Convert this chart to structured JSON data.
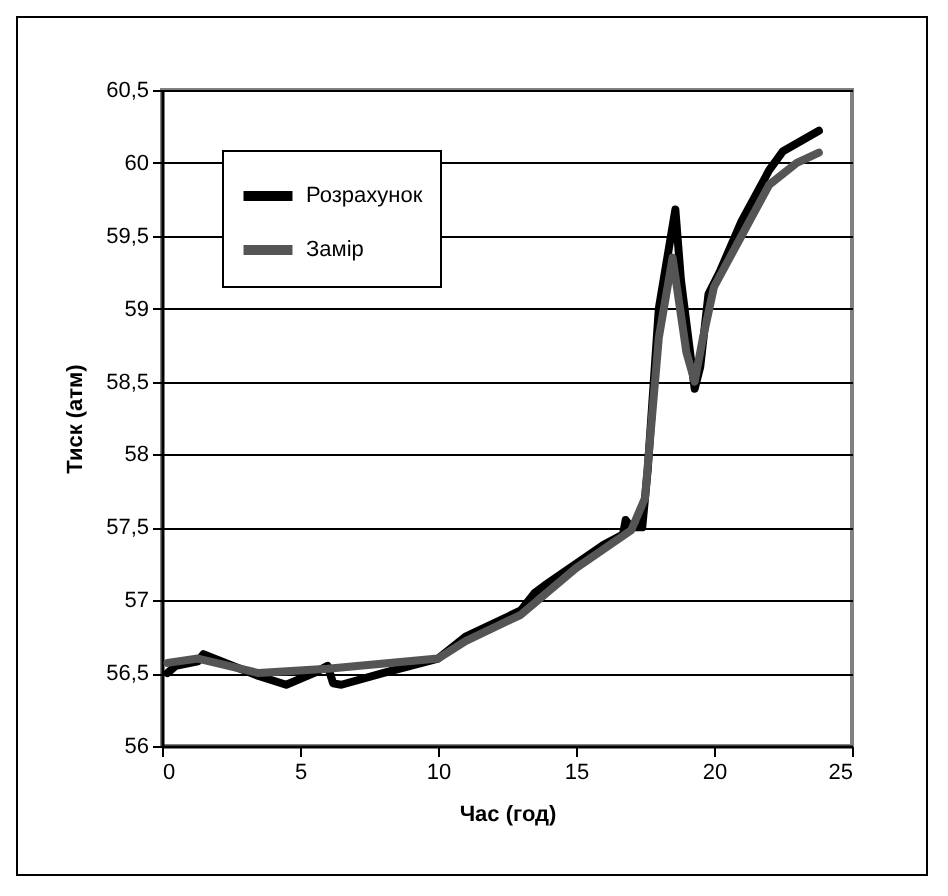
{
  "chart_data": {
    "type": "line",
    "xlabel": "Час (год)",
    "ylabel": "Тиск (атм)",
    "xlim": [
      0,
      25
    ],
    "xticks": [
      0,
      5,
      10,
      15,
      20,
      25
    ],
    "ylim": [
      56,
      60.5
    ],
    "yticks": [
      {
        "value": 56,
        "label": "56"
      },
      {
        "value": 56.5,
        "label": "56,5"
      },
      {
        "value": 57,
        "label": "57"
      },
      {
        "value": 57.5,
        "label": "57,5"
      },
      {
        "value": 58,
        "label": "58"
      },
      {
        "value": 58.5,
        "label": "58,5"
      },
      {
        "value": 59,
        "label": "59"
      },
      {
        "value": 59.5,
        "label": "59,5"
      },
      {
        "value": 60,
        "label": "60"
      },
      {
        "value": 60.5,
        "label": "60,5"
      }
    ],
    "grid": "y",
    "legend": "top left",
    "marker": "none",
    "line_style": "solid",
    "series": [
      {
        "name": "Розрахунок",
        "color": "#000000",
        "x": [
          0.2,
          0.5,
          1.3,
          1.5,
          3.5,
          4.5,
          5.5,
          6,
          6.2,
          6.5,
          8,
          10,
          11,
          13,
          13.5,
          14,
          15,
          16,
          16.7,
          16.8,
          17,
          17.4,
          17.6,
          18,
          18.6,
          18.8,
          19.3,
          19.5,
          19.8,
          20.2,
          21,
          22,
          22.5,
          23.8
        ],
        "values": [
          56.5,
          56.55,
          56.58,
          56.63,
          56.48,
          56.42,
          56.5,
          56.55,
          56.43,
          56.42,
          56.5,
          56.6,
          56.75,
          56.93,
          57.05,
          57.12,
          57.25,
          57.38,
          57.45,
          57.55,
          57.5,
          57.5,
          57.9,
          59.0,
          59.68,
          59.2,
          58.45,
          58.6,
          59.1,
          59.25,
          59.6,
          59.95,
          60.08,
          60.22
        ]
      },
      {
        "name": "Замір",
        "color": "#555555",
        "x": [
          0.2,
          1.3,
          3.5,
          6,
          10,
          11,
          13,
          15,
          17,
          17.5,
          18,
          18.5,
          19,
          19.3,
          19.6,
          20,
          21,
          22,
          23,
          23.8
        ],
        "values": [
          56.57,
          56.6,
          56.5,
          56.53,
          56.6,
          56.72,
          56.9,
          57.22,
          57.48,
          57.7,
          58.8,
          59.35,
          58.7,
          58.5,
          58.8,
          59.15,
          59.5,
          59.85,
          60.0,
          60.07
        ]
      }
    ]
  }
}
